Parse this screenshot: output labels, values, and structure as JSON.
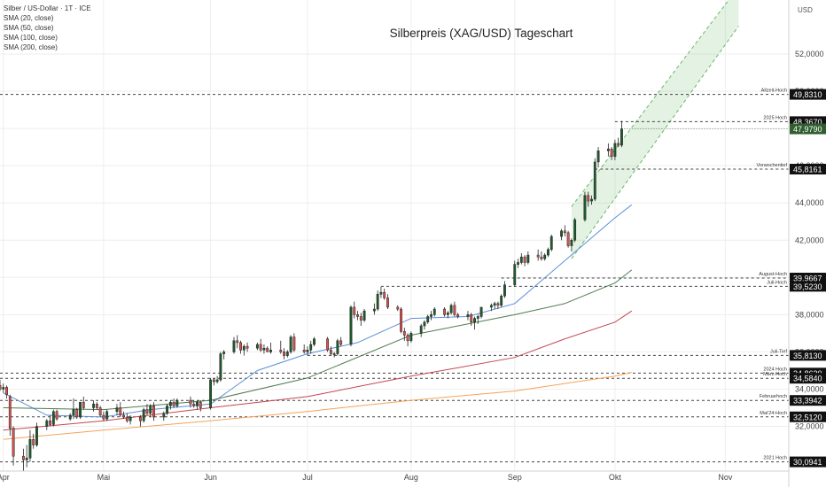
{
  "symbol_label": "Silber / US-Dollar · 1T · ICE",
  "indicators": [
    "SMA (20, close)",
    "SMA (50, close)",
    "SMA (100, close)",
    "SMA (200, close)"
  ],
  "colors": {
    "up": "#1f5c2c",
    "down": "#d9534f",
    "sma20": "#5b8fd6",
    "sma50": "#4f7a4f",
    "sma100": "#c2474f",
    "sma200": "#f5a25a",
    "channel": "#67b96b",
    "level_line": "#444444",
    "current_tag": "#2f5e2f"
  },
  "chart_data": {
    "type": "candlestick",
    "title": "Silberpreis (XAG/USD) Tageschart",
    "currency": "USD",
    "ylim": [
      29.6,
      54.9
    ],
    "y_ticks": [
      32,
      34,
      36,
      38,
      40,
      42,
      44,
      46,
      48,
      50,
      52
    ],
    "y_tick_labels": [
      "32,0000",
      "34,0000",
      "36,0000",
      "38,0000",
      "40,0000",
      "42,0000",
      "44,0000",
      "46,0000",
      "48,0000",
      "50,0000",
      "52,0000"
    ],
    "x_labels": [
      {
        "label": "Apr",
        "date": "2025-04-01"
      },
      {
        "label": "Mai",
        "date": "2025-05-01"
      },
      {
        "label": "Jun",
        "date": "2025-06-02"
      },
      {
        "label": "Jul",
        "date": "2025-07-01"
      },
      {
        "label": "Aug",
        "date": "2025-08-01"
      },
      {
        "label": "Sep",
        "date": "2025-09-01"
      },
      {
        "label": "Okt",
        "date": "2025-10-01"
      },
      {
        "label": "Nov",
        "date": "2025-11-03"
      }
    ],
    "x_range": [
      "2025-03-31",
      "2025-11-22"
    ],
    "current_price": {
      "label": "47,9790",
      "value": 47.979
    },
    "levels": [
      {
        "name": "Allzeit-Hoch",
        "value": 49.831,
        "label": "49,8310",
        "from": "2025-03-31"
      },
      {
        "name": "2025 Hoch",
        "value": 48.367,
        "label": "48,3670",
        "from": "2025-10-01"
      },
      {
        "name": "Vorwochentief",
        "value": 45.8161,
        "label": "45,8161",
        "from": "2025-09-25"
      },
      {
        "name": "August-Hoch",
        "value": 39.9667,
        "label": "39,9667",
        "from": "2025-08-28"
      },
      {
        "name": "Juli-Hoch",
        "value": 39.523,
        "label": "39,5230",
        "from": "2025-07-23"
      },
      {
        "name": "Juli-Tief",
        "value": 35.813,
        "label": "35,8130",
        "from": "2025-07-01"
      },
      {
        "name": "2024 Hoch",
        "value": 34.863,
        "label": "34,8630",
        "from": "2025-03-31"
      },
      {
        "name": "März-Hoch",
        "value": 34.584,
        "label": "34,5840",
        "from": "2025-03-31"
      },
      {
        "name": "Februarhoch",
        "value": 33.3942,
        "label": "33,3942",
        "from": "2025-03-31"
      },
      {
        "name": "Mai'24-Hoch",
        "value": 32.512,
        "label": "32,5120",
        "from": "2025-03-31"
      },
      {
        "name": "2021 Hoch",
        "value": 30.0941,
        "label": "30,0941",
        "from": "2025-03-31"
      }
    ],
    "channel": {
      "start": "2025-09-18",
      "end": "2025-11-07",
      "lower_start": 41.0,
      "lower_end": 53.5,
      "upper_start": 43.8,
      "upper_end": 55.6
    },
    "sma": [
      {
        "name": "SMA (20, close)",
        "color_key": "sma20",
        "points": [
          [
            "2025-04-01",
            33.8
          ],
          [
            "2025-04-14",
            32.6
          ],
          [
            "2025-05-01",
            32.5
          ],
          [
            "2025-05-15",
            32.9
          ],
          [
            "2025-06-02",
            33.2
          ],
          [
            "2025-06-16",
            35.0
          ],
          [
            "2025-07-01",
            35.9
          ],
          [
            "2025-07-16",
            36.5
          ],
          [
            "2025-08-01",
            37.8
          ],
          [
            "2025-08-18",
            37.9
          ],
          [
            "2025-09-01",
            38.6
          ],
          [
            "2025-09-16",
            40.9
          ],
          [
            "2025-10-01",
            43.2
          ],
          [
            "2025-10-06",
            43.9
          ]
        ]
      },
      {
        "name": "SMA (50, close)",
        "color_key": "sma50",
        "points": [
          [
            "2025-04-01",
            33.0
          ],
          [
            "2025-05-01",
            32.9
          ],
          [
            "2025-06-02",
            33.4
          ],
          [
            "2025-07-01",
            34.6
          ],
          [
            "2025-08-01",
            36.9
          ],
          [
            "2025-09-01",
            38.0
          ],
          [
            "2025-09-16",
            38.6
          ],
          [
            "2025-10-01",
            39.7
          ],
          [
            "2025-10-06",
            40.4
          ]
        ]
      },
      {
        "name": "SMA (100, close)",
        "color_key": "sma100",
        "points": [
          [
            "2025-04-01",
            31.8
          ],
          [
            "2025-05-01",
            32.3
          ],
          [
            "2025-06-02",
            33.0
          ],
          [
            "2025-07-01",
            33.6
          ],
          [
            "2025-08-01",
            34.7
          ],
          [
            "2025-09-01",
            35.7
          ],
          [
            "2025-09-16",
            36.7
          ],
          [
            "2025-10-01",
            37.6
          ],
          [
            "2025-10-06",
            38.2
          ]
        ]
      },
      {
        "name": "SMA (200, close)",
        "color_key": "sma200",
        "points": [
          [
            "2025-04-01",
            31.3
          ],
          [
            "2025-05-01",
            31.8
          ],
          [
            "2025-06-02",
            32.3
          ],
          [
            "2025-07-01",
            32.8
          ],
          [
            "2025-08-01",
            33.4
          ],
          [
            "2025-09-01",
            33.9
          ],
          [
            "2025-10-01",
            34.7
          ],
          [
            "2025-10-06",
            34.9
          ]
        ]
      }
    ],
    "candles": [
      [
        "2025-03-31",
        34.2,
        34.5,
        33.9,
        34.0
      ],
      [
        "2025-04-01",
        34.0,
        34.3,
        33.8,
        34.1
      ],
      [
        "2025-04-02",
        34.1,
        34.2,
        33.5,
        33.7
      ],
      [
        "2025-04-03",
        33.6,
        33.7,
        31.5,
        31.9
      ],
      [
        "2025-04-04",
        31.9,
        32.0,
        29.9,
        30.4
      ],
      [
        "2025-04-07",
        30.4,
        30.8,
        29.6,
        30.2
      ],
      [
        "2025-04-08",
        30.2,
        31.0,
        29.8,
        30.3
      ],
      [
        "2025-04-09",
        30.3,
        31.8,
        30.1,
        31.3
      ],
      [
        "2025-04-10",
        31.3,
        31.6,
        30.8,
        31.0
      ],
      [
        "2025-04-11",
        31.0,
        32.2,
        30.9,
        32.0
      ],
      [
        "2025-04-14",
        32.0,
        32.4,
        31.8,
        32.3
      ],
      [
        "2025-04-15",
        32.3,
        32.6,
        32.0,
        32.1
      ],
      [
        "2025-04-16",
        32.1,
        32.9,
        32.0,
        32.8
      ],
      [
        "2025-04-17",
        32.8,
        32.9,
        32.3,
        32.4
      ],
      [
        "2025-04-21",
        32.4,
        32.7,
        32.3,
        32.6
      ],
      [
        "2025-04-22",
        32.6,
        33.5,
        32.4,
        32.9
      ],
      [
        "2025-04-23",
        32.9,
        33.0,
        32.4,
        32.5
      ],
      [
        "2025-04-24",
        32.5,
        33.3,
        32.4,
        33.3
      ],
      [
        "2025-04-25",
        33.3,
        33.6,
        32.9,
        33.0
      ],
      [
        "2025-04-28",
        33.0,
        33.4,
        32.8,
        33.2
      ],
      [
        "2025-04-29",
        33.2,
        33.3,
        32.9,
        33.0
      ],
      [
        "2025-04-30",
        33.0,
        33.1,
        32.5,
        32.6
      ],
      [
        "2025-05-01",
        32.6,
        32.8,
        32.3,
        32.4
      ],
      [
        "2025-05-02",
        32.4,
        32.9,
        32.3,
        32.8
      ],
      [
        "2025-05-05",
        32.8,
        33.2,
        32.6,
        33.0
      ],
      [
        "2025-05-06",
        33.0,
        33.3,
        32.5,
        32.6
      ],
      [
        "2025-05-07",
        32.6,
        32.8,
        32.4,
        32.5
      ],
      [
        "2025-05-08",
        32.5,
        32.7,
        32.2,
        32.3
      ],
      [
        "2025-05-09",
        32.3,
        32.6,
        32.1,
        32.5
      ],
      [
        "2025-05-12",
        32.5,
        32.6,
        32.0,
        32.3
      ],
      [
        "2025-05-13",
        32.3,
        33.0,
        32.2,
        32.9
      ],
      [
        "2025-05-14",
        32.9,
        33.2,
        32.6,
        32.7
      ],
      [
        "2025-05-15",
        32.7,
        33.2,
        32.5,
        33.1
      ],
      [
        "2025-05-16",
        33.1,
        33.3,
        32.3,
        32.5
      ],
      [
        "2025-05-19",
        32.5,
        32.8,
        32.3,
        32.7
      ],
      [
        "2025-05-20",
        32.7,
        33.2,
        32.6,
        33.1
      ],
      [
        "2025-05-21",
        33.1,
        33.4,
        32.9,
        33.3
      ],
      [
        "2025-05-22",
        33.3,
        33.5,
        33.0,
        33.1
      ],
      [
        "2025-05-23",
        33.1,
        33.5,
        33.0,
        33.4
      ],
      [
        "2025-05-27",
        33.4,
        33.6,
        33.0,
        33.2
      ],
      [
        "2025-05-28",
        33.2,
        33.4,
        33.0,
        33.1
      ],
      [
        "2025-05-29",
        33.1,
        33.4,
        32.9,
        33.3
      ],
      [
        "2025-05-30",
        33.3,
        33.4,
        32.8,
        33.0
      ],
      [
        "2025-06-02",
        33.0,
        34.6,
        32.9,
        34.5
      ],
      [
        "2025-06-03",
        34.5,
        34.6,
        34.2,
        34.4
      ],
      [
        "2025-06-04",
        34.4,
        34.7,
        34.3,
        34.5
      ],
      [
        "2025-06-05",
        34.5,
        36.0,
        34.4,
        35.9
      ],
      [
        "2025-06-06",
        35.9,
        36.1,
        35.6,
        36.0
      ],
      [
        "2025-06-09",
        36.0,
        36.8,
        35.9,
        36.6
      ],
      [
        "2025-06-10",
        36.6,
        36.9,
        36.2,
        36.5
      ],
      [
        "2025-06-11",
        36.5,
        36.6,
        35.9,
        36.1
      ],
      [
        "2025-06-12",
        36.1,
        36.4,
        35.8,
        36.3
      ],
      [
        "2025-06-13",
        36.3,
        36.5,
        36.0,
        36.2
      ],
      [
        "2025-06-16",
        36.2,
        36.5,
        36.1,
        36.4
      ],
      [
        "2025-06-17",
        36.4,
        36.7,
        36.0,
        36.1
      ],
      [
        "2025-06-18",
        36.1,
        36.4,
        35.9,
        36.2
      ],
      [
        "2025-06-19",
        36.2,
        36.3,
        36.0,
        36.0
      ],
      [
        "2025-06-20",
        36.0,
        36.5,
        35.9,
        36.1
      ],
      [
        "2025-06-23",
        36.1,
        36.6,
        35.9,
        36.0
      ],
      [
        "2025-06-24",
        36.0,
        36.2,
        35.6,
        35.8
      ],
      [
        "2025-06-25",
        35.8,
        36.1,
        35.7,
        36.0
      ],
      [
        "2025-06-26",
        36.0,
        36.9,
        35.9,
        36.8
      ],
      [
        "2025-06-27",
        36.8,
        37.0,
        36.0,
        36.1
      ],
      [
        "2025-06-30",
        36.1,
        36.4,
        35.9,
        36.0
      ],
      [
        "2025-07-01",
        36.0,
        36.3,
        35.8,
        36.1
      ],
      [
        "2025-07-02",
        36.1,
        36.6,
        35.9,
        36.4
      ],
      [
        "2025-07-03",
        36.4,
        36.8,
        36.3,
        36.7
      ],
      [
        "2025-07-07",
        36.7,
        36.8,
        36.0,
        36.1
      ],
      [
        "2025-07-08",
        36.1,
        36.3,
        35.8,
        35.9
      ],
      [
        "2025-07-09",
        35.9,
        36.0,
        35.7,
        35.9
      ],
      [
        "2025-07-10",
        35.9,
        36.7,
        35.8,
        36.6
      ],
      [
        "2025-07-11",
        36.6,
        36.8,
        36.3,
        36.4
      ],
      [
        "2025-07-14",
        36.4,
        38.5,
        36.3,
        38.4
      ],
      [
        "2025-07-15",
        38.4,
        38.7,
        37.8,
        38.0
      ],
      [
        "2025-07-16",
        38.0,
        38.2,
        37.7,
        37.9
      ],
      [
        "2025-07-17",
        37.9,
        38.1,
        37.4,
        37.7
      ],
      [
        "2025-07-18",
        37.7,
        38.3,
        37.6,
        38.2
      ],
      [
        "2025-07-21",
        38.2,
        38.6,
        38.0,
        38.3
      ],
      [
        "2025-07-22",
        38.3,
        39.3,
        38.2,
        39.1
      ],
      [
        "2025-07-23",
        39.1,
        39.5,
        38.9,
        39.2
      ],
      [
        "2025-07-24",
        39.2,
        39.4,
        38.8,
        38.9
      ],
      [
        "2025-07-25",
        38.9,
        39.1,
        38.3,
        38.4
      ],
      [
        "2025-07-28",
        38.4,
        38.5,
        38.2,
        38.3
      ],
      [
        "2025-07-29",
        38.3,
        38.4,
        37.0,
        37.1
      ],
      [
        "2025-07-30",
        37.1,
        37.3,
        36.6,
        36.9
      ],
      [
        "2025-07-31",
        36.9,
        37.0,
        36.3,
        36.6
      ],
      [
        "2025-08-01",
        36.6,
        37.1,
        36.5,
        37.0
      ],
      [
        "2025-08-04",
        37.0,
        37.5,
        36.8,
        37.4
      ],
      [
        "2025-08-05",
        37.4,
        37.7,
        37.2,
        37.6
      ],
      [
        "2025-08-06",
        37.6,
        38.0,
        37.5,
        37.9
      ],
      [
        "2025-08-07",
        37.9,
        38.2,
        37.7,
        38.0
      ],
      [
        "2025-08-08",
        38.0,
        38.4,
        37.9,
        38.3
      ],
      [
        "2025-08-11",
        38.3,
        38.4,
        37.9,
        38.0
      ],
      [
        "2025-08-12",
        38.0,
        38.2,
        37.8,
        38.1
      ],
      [
        "2025-08-13",
        38.1,
        38.6,
        38.0,
        38.5
      ],
      [
        "2025-08-14",
        38.5,
        38.7,
        37.9,
        38.0
      ],
      [
        "2025-08-15",
        38.0,
        38.1,
        37.8,
        37.9
      ],
      [
        "2025-08-18",
        37.9,
        38.2,
        37.7,
        38.0
      ],
      [
        "2025-08-19",
        38.0,
        38.1,
        37.4,
        37.6
      ],
      [
        "2025-08-20",
        37.6,
        37.9,
        37.2,
        37.8
      ],
      [
        "2025-08-21",
        37.8,
        38.0,
        37.5,
        37.9
      ],
      [
        "2025-08-22",
        37.9,
        38.4,
        37.8,
        38.4
      ],
      [
        "2025-08-25",
        38.4,
        38.6,
        38.2,
        38.5
      ],
      [
        "2025-08-26",
        38.5,
        38.7,
        38.3,
        38.6
      ],
      [
        "2025-08-27",
        38.6,
        38.7,
        38.3,
        38.5
      ],
      [
        "2025-08-28",
        38.5,
        39.1,
        38.4,
        39.0
      ],
      [
        "2025-08-29",
        39.0,
        39.8,
        38.9,
        39.6
      ],
      [
        "2025-09-01",
        39.6,
        40.9,
        39.5,
        40.7
      ],
      [
        "2025-09-02",
        40.7,
        41.0,
        40.5,
        40.8
      ],
      [
        "2025-09-03",
        40.8,
        41.3,
        40.7,
        41.1
      ],
      [
        "2025-09-04",
        41.1,
        41.2,
        40.6,
        40.8
      ],
      [
        "2025-09-05",
        40.8,
        41.4,
        40.7,
        41.2
      ],
      [
        "2025-09-08",
        41.2,
        41.5,
        40.9,
        41.1
      ],
      [
        "2025-09-09",
        41.1,
        41.4,
        40.9,
        41.0
      ],
      [
        "2025-09-10",
        41.0,
        41.3,
        40.9,
        41.2
      ],
      [
        "2025-09-11",
        41.2,
        41.6,
        41.1,
        41.5
      ],
      [
        "2025-09-12",
        41.5,
        42.3,
        41.4,
        42.2
      ],
      [
        "2025-09-15",
        42.2,
        42.6,
        42.0,
        42.5
      ],
      [
        "2025-09-16",
        42.5,
        42.8,
        42.2,
        42.4
      ],
      [
        "2025-09-17",
        42.4,
        42.5,
        41.6,
        41.7
      ],
      [
        "2025-09-18",
        41.7,
        42.1,
        41.4,
        42.0
      ],
      [
        "2025-09-19",
        42.0,
        43.2,
        41.9,
        43.1
      ],
      [
        "2025-09-22",
        43.1,
        44.6,
        43.0,
        44.4
      ],
      [
        "2025-09-23",
        44.4,
        44.6,
        43.8,
        44.1
      ],
      [
        "2025-09-24",
        44.1,
        44.4,
        43.9,
        44.2
      ],
      [
        "2025-09-25",
        44.2,
        46.4,
        44.1,
        46.2
      ],
      [
        "2025-09-26",
        46.2,
        47.0,
        45.9,
        46.8
      ],
      [
        "2025-09-29",
        46.8,
        47.2,
        46.5,
        46.9
      ],
      [
        "2025-09-30",
        46.9,
        47.0,
        46.3,
        46.5
      ],
      [
        "2025-10-01",
        46.5,
        47.4,
        46.3,
        47.2
      ],
      [
        "2025-10-02",
        47.2,
        47.5,
        47.0,
        47.1
      ],
      [
        "2025-10-03",
        47.1,
        48.4,
        47.0,
        47.979
      ]
    ]
  }
}
